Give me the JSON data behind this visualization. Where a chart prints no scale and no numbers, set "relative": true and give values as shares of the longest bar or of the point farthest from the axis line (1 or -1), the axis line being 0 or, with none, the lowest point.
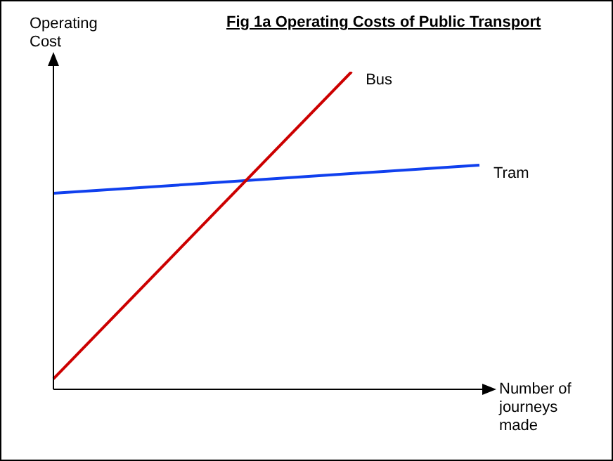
{
  "chart_data": {
    "type": "line",
    "title": "Fig 1a Operating Costs of Public Transport",
    "xlabel": "Number of journeys made",
    "ylabel": "Operating Cost",
    "relative": true,
    "legend": false,
    "marker": "none",
    "line_style": "solid",
    "categories": [
      null,
      null,
      null,
      null,
      null,
      null,
      null,
      null,
      null,
      null,
      null
    ],
    "series": [
      {
        "name": "Bus",
        "color": "#cc0000",
        "values": [
          0.033,
          null,
          null,
          null,
          null,
          null,
          null,
          1,
          null,
          null,
          null
        ]
      },
      {
        "name": "Tram",
        "color": "#1040ee",
        "values": [
          0.617,
          null,
          null,
          null,
          null,
          null,
          null,
          null,
          null,
          null,
          0.706
        ]
      }
    ]
  }
}
